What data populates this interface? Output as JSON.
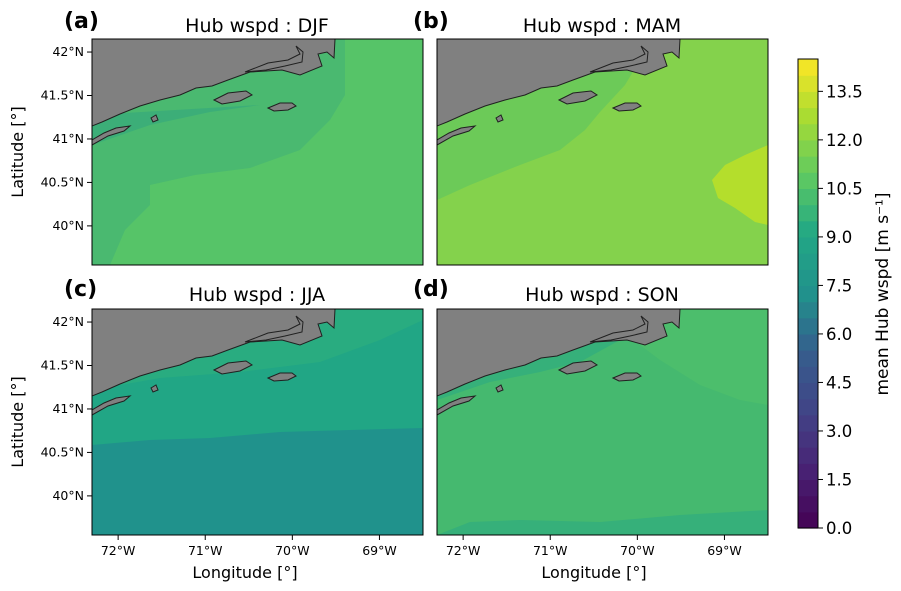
{
  "chart_data": [
    {
      "type": "heatmap",
      "panel_label": "(a)",
      "title": "Hub wspd : DJF",
      "ylabel": "Latitude [°]",
      "xlabel": "",
      "xlim": [
        -72.3,
        -68.5
      ],
      "ylim": [
        39.55,
        42.15
      ],
      "x_ticks": [],
      "y_ticks": [
        "42°N",
        "41.5°N",
        "41°N",
        "40.5°N",
        "40°N"
      ],
      "dominant_value_range": [
        10.5,
        11.5
      ]
    },
    {
      "type": "heatmap",
      "panel_label": "(b)",
      "title": "Hub wspd : MAM",
      "ylabel": "",
      "xlabel": "",
      "xlim": [
        -72.3,
        -68.5
      ],
      "ylim": [
        39.55,
        42.15
      ],
      "x_ticks": [],
      "y_ticks": [],
      "dominant_value_range": [
        11.0,
        13.0
      ]
    },
    {
      "type": "heatmap",
      "panel_label": "(c)",
      "title": "Hub wspd : JJA",
      "ylabel": "Latitude [°]",
      "xlabel": "Longitude [°]",
      "xlim": [
        -72.3,
        -68.5
      ],
      "ylim": [
        39.55,
        42.15
      ],
      "x_ticks": [
        "72°W",
        "71°W",
        "70°W",
        "69°W"
      ],
      "y_ticks": [
        "42°N",
        "41.5°N",
        "41°N",
        "40.5°N",
        "40°N"
      ],
      "dominant_value_range": [
        7.5,
        8.5
      ]
    },
    {
      "type": "heatmap",
      "panel_label": "(d)",
      "title": "Hub wspd : SON",
      "ylabel": "",
      "xlabel": "Longitude [°]",
      "xlim": [
        -72.3,
        -68.5
      ],
      "ylim": [
        39.55,
        42.15
      ],
      "x_ticks": [
        "72°W",
        "71°W",
        "70°W",
        "69°W"
      ],
      "y_ticks": [],
      "dominant_value_range": [
        9.5,
        10.5
      ]
    }
  ],
  "colorbar": {
    "label": "mean Hub wspd [m s⁻¹]",
    "min": 0.0,
    "max": 14.5,
    "ticks": [
      "0.0",
      "1.5",
      "3.0",
      "4.5",
      "6.0",
      "7.5",
      "9.0",
      "10.5",
      "12.0",
      "13.5"
    ],
    "tick_values": [
      0,
      1.5,
      3,
      4.5,
      6,
      7.5,
      9,
      10.5,
      12,
      13.5
    ],
    "colormap": "viridis"
  },
  "colors": {
    "land": "#808080",
    "djf_main": "#56c468",
    "djf_near": "#4ab970",
    "djf_coast": "#3cae78",
    "mam_main": "#84d24c",
    "mam_near": "#6cca58",
    "mam_hot": "#b4de2c",
    "jja_main": "#21a685",
    "jja_south": "#20928c",
    "jja_coast": "#29ac80",
    "son_main": "#45b96f",
    "son_near": "#36b07a",
    "son_east": "#4cbe6c"
  }
}
